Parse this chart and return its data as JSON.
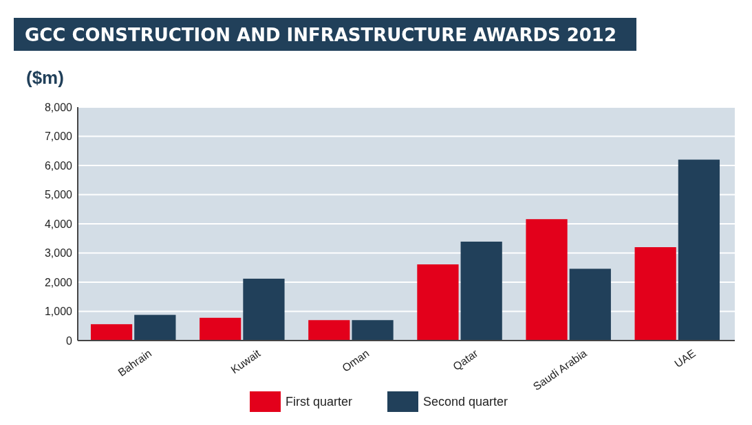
{
  "chart_data": {
    "type": "bar",
    "title": "GCC CONSTRUCTION AND INFRASTRUCTURE AWARDS 2012",
    "ylabel": "($m)",
    "categories": [
      "Bahrain",
      "Kuwait",
      "Oman",
      "Qatar",
      "Saudi Arabia",
      "UAE"
    ],
    "series": [
      {
        "name": "First quarter",
        "color": "#e3001b",
        "values": [
          560,
          780,
          700,
          2610,
          4160,
          3200
        ]
      },
      {
        "name": "Second quarter",
        "color": "#21405a",
        "values": [
          880,
          2120,
          700,
          3390,
          2460,
          6200
        ]
      }
    ],
    "ylim": [
      0,
      8000
    ],
    "yticks": [
      {
        "value": 0,
        "label": "0"
      },
      {
        "value": 1000,
        "label": "1,000"
      },
      {
        "value": 2000,
        "label": "2,000"
      },
      {
        "value": 3000,
        "label": "3,000"
      },
      {
        "value": 4000,
        "label": "4,000"
      },
      {
        "value": 5000,
        "label": "5,000"
      },
      {
        "value": 6000,
        "label": "6,000"
      },
      {
        "value": 7000,
        "label": "7,000"
      },
      {
        "value": 8000,
        "label": "8,000"
      }
    ],
    "grid": "y",
    "legend": "bottom"
  }
}
